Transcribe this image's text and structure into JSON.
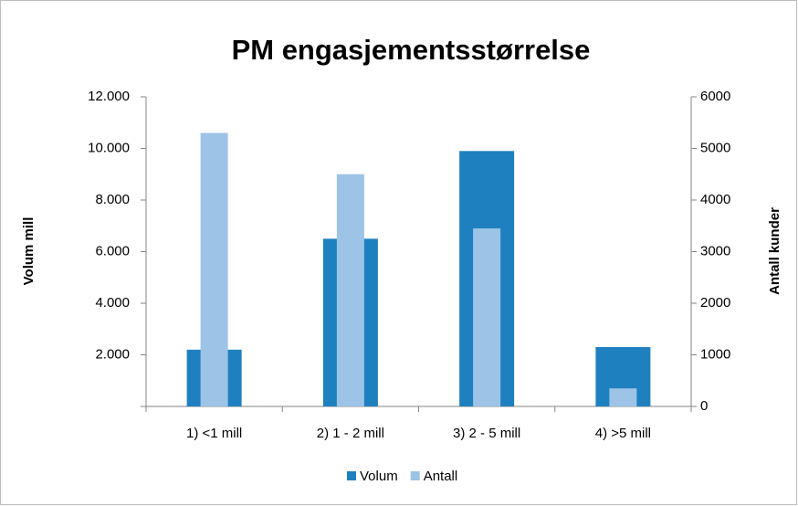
{
  "chart_data": {
    "type": "bar",
    "title": "PM engasjementsstørrelse",
    "ylabel": "Volum mill",
    "y2label": "Antall kunder",
    "categories": [
      "1) <1 mill",
      "2) 1 - 2 mill",
      "3) 2 - 5 mill",
      "4) >5 mill"
    ],
    "series": [
      {
        "name": "Volum",
        "color": "#1f80c0",
        "values": [
          2200,
          6500,
          9900,
          2300
        ]
      },
      {
        "name": "Antall",
        "color": "#9dc3e6",
        "values": [
          5300,
          4500,
          3450,
          350
        ],
        "axis": "y2"
      }
    ],
    "ylim": [
      0,
      12000
    ],
    "yticks": [
      {
        "value": 2000,
        "label": "2.000"
      },
      {
        "value": 4000,
        "label": "4.000"
      },
      {
        "value": 6000,
        "label": "6.000"
      },
      {
        "value": 8000,
        "label": "8.000"
      },
      {
        "value": 10000,
        "label": "10.000"
      },
      {
        "value": 12000,
        "label": "12.000"
      }
    ],
    "y2lim": [
      0,
      6000
    ],
    "y2ticks": [
      0,
      1000,
      2000,
      3000,
      4000,
      5000,
      6000
    ],
    "legend": "bottom"
  }
}
